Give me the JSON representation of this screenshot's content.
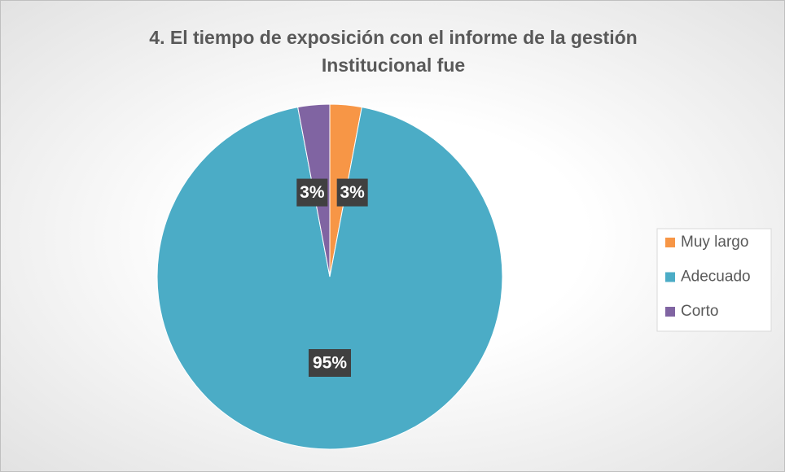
{
  "chart_data": {
    "type": "pie",
    "title": "4. El tiempo de exposición con el informe de la gestión Institucional fue",
    "categories": [
      "Muy largo",
      "Adecuado",
      "Corto"
    ],
    "values": [
      3,
      95,
      3
    ],
    "value_labels": [
      "3%",
      "95%",
      "3%"
    ],
    "colors": [
      "#f79646",
      "#4bacc6",
      "#8064a2"
    ],
    "legend": "right"
  }
}
